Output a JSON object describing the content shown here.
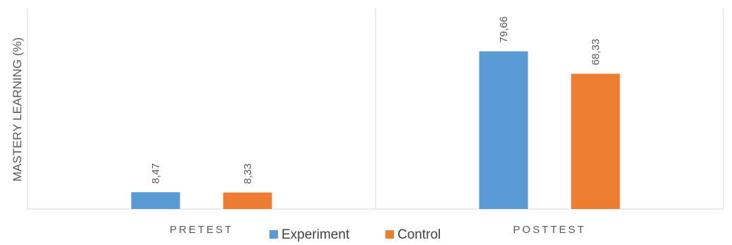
{
  "chart_data": {
    "type": "bar",
    "title": "",
    "xlabel": "",
    "ylabel": "MASTERY LEARNING (%)",
    "categories": [
      "PRETEST",
      "POSTTEST"
    ],
    "series": [
      {
        "name": "Experiment",
        "values": [
          8.47,
          79.66
        ],
        "labels": [
          "8,47",
          "79,66"
        ],
        "color": "#5B9BD5"
      },
      {
        "name": "Control",
        "values": [
          8.33,
          68.33
        ],
        "labels": [
          "8,33",
          "68,33"
        ],
        "color": "#ED7D31"
      }
    ],
    "ylim": [
      0,
      80
    ],
    "grid": false,
    "legend": "bottom"
  }
}
